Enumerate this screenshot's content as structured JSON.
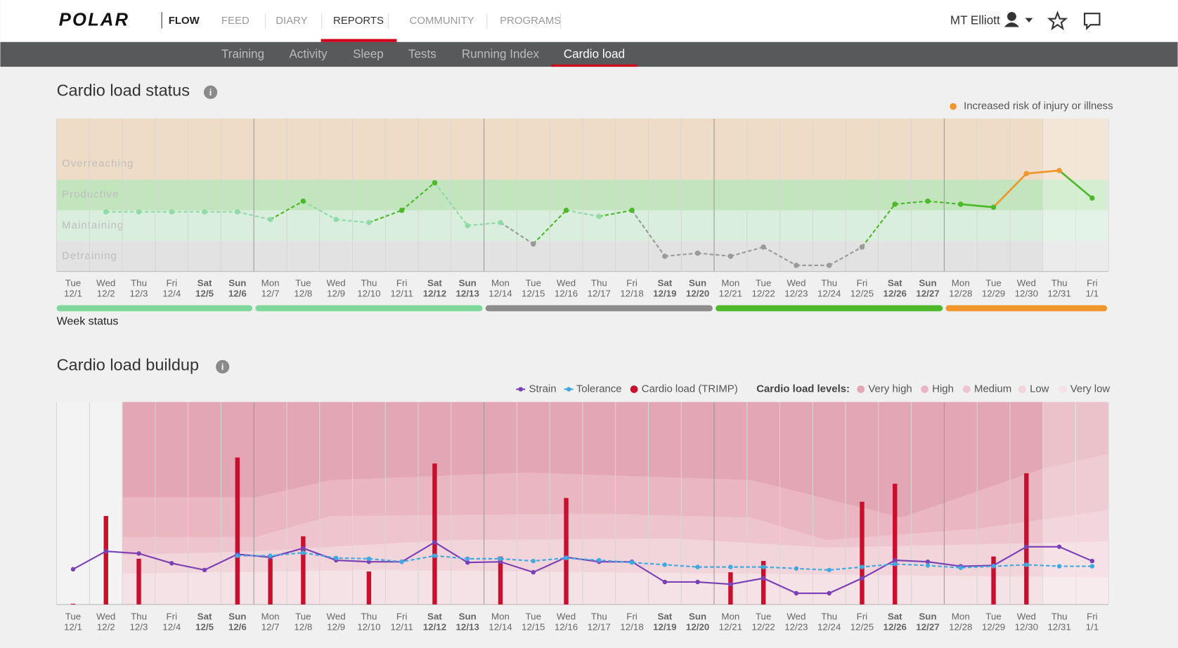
{
  "header": {
    "logo": "POLAR",
    "app": "FLOW",
    "tabs": [
      "FEED",
      "DIARY",
      "REPORTS",
      "COMMUNITY",
      "PROGRAMS"
    ],
    "active_tab": 2,
    "user": "MT Elliott"
  },
  "subnav": {
    "items": [
      "Training",
      "Activity",
      "Sleep",
      "Tests",
      "Running Index",
      "Cardio load"
    ],
    "active": 5
  },
  "days": [
    {
      "weekday": "Tue",
      "date": "12/1"
    },
    {
      "weekday": "Wed",
      "date": "12/2"
    },
    {
      "weekday": "Thu",
      "date": "12/3"
    },
    {
      "weekday": "Fri",
      "date": "12/4"
    },
    {
      "weekday": "Sat",
      "date": "12/5",
      "bold": true
    },
    {
      "weekday": "Sun",
      "date": "12/6",
      "bold": true
    },
    {
      "weekday": "Mon",
      "date": "12/7"
    },
    {
      "weekday": "Tue",
      "date": "12/8"
    },
    {
      "weekday": "Wed",
      "date": "12/9"
    },
    {
      "weekday": "Thu",
      "date": "12/10"
    },
    {
      "weekday": "Fri",
      "date": "12/11"
    },
    {
      "weekday": "Sat",
      "date": "12/12",
      "bold": true
    },
    {
      "weekday": "Sun",
      "date": "12/13",
      "bold": true
    },
    {
      "weekday": "Mon",
      "date": "12/14"
    },
    {
      "weekday": "Tue",
      "date": "12/15"
    },
    {
      "weekday": "Wed",
      "date": "12/16"
    },
    {
      "weekday": "Thu",
      "date": "12/17"
    },
    {
      "weekday": "Fri",
      "date": "12/18"
    },
    {
      "weekday": "Sat",
      "date": "12/19",
      "bold": true
    },
    {
      "weekday": "Sun",
      "date": "12/20",
      "bold": true
    },
    {
      "weekday": "Mon",
      "date": "12/21"
    },
    {
      "weekday": "Tue",
      "date": "12/22"
    },
    {
      "weekday": "Wed",
      "date": "12/23"
    },
    {
      "weekday": "Thu",
      "date": "12/24"
    },
    {
      "weekday": "Fri",
      "date": "12/25"
    },
    {
      "weekday": "Sat",
      "date": "12/26",
      "bold": true
    },
    {
      "weekday": "Sun",
      "date": "12/27",
      "bold": true
    },
    {
      "weekday": "Mon",
      "date": "12/28"
    },
    {
      "weekday": "Tue",
      "date": "12/29"
    },
    {
      "weekday": "Wed",
      "date": "12/30"
    },
    {
      "weekday": "Thu",
      "date": "12/31"
    },
    {
      "weekday": "Fri",
      "date": "1/1"
    }
  ],
  "status_chart": {
    "type": "line",
    "title": "Cardio load status",
    "legend": "Increased risk of injury or illness",
    "ylim": [
      0,
      5
    ],
    "zones": [
      {
        "label": "Overreaching",
        "from": 3,
        "to": 5,
        "fill": "#efdcc6",
        "point_color": "#f0962b"
      },
      {
        "label": "Productive",
        "from": 2,
        "to": 3,
        "fill": "#c3e5bd",
        "point_color": "#4cb82a"
      },
      {
        "label": "Maintaining",
        "from": 1,
        "to": 2,
        "fill": "#d9eedd",
        "point_color": "#8fdaa8"
      },
      {
        "label": "Detraining",
        "from": 0,
        "to": 1,
        "fill": "#e2e2e2",
        "point_color": "#9a9a9a"
      }
    ],
    "values": [
      null,
      1.95,
      1.95,
      1.95,
      1.95,
      1.95,
      1.7,
      2.3,
      1.7,
      1.6,
      2.0,
      2.9,
      1.5,
      1.6,
      0.9,
      2.0,
      1.8,
      2.0,
      0.5,
      0.6,
      0.5,
      0.8,
      0.2,
      0.2,
      0.8,
      2.2,
      2.3,
      2.2,
      2.1,
      3.2,
      3.3,
      2.4
    ],
    "week_status_label": "Week status",
    "week_status": [
      {
        "days": 6,
        "color": "#7dd89a"
      },
      {
        "days": 7,
        "color": "#7dd89a"
      },
      {
        "days": 7,
        "color": "#8c8c8c"
      },
      {
        "days": 7,
        "color": "#4cba2a"
      },
      {
        "days": 5,
        "color": "#f0962b"
      }
    ]
  },
  "buildup_chart": {
    "type": "bar-line",
    "title": "Cardio load buildup",
    "ylim": [
      0,
      270
    ],
    "series": [
      {
        "name": "Strain",
        "color": "#7b3fb5",
        "type": "line",
        "values": [
          47,
          71,
          68,
          55,
          46,
          67,
          63,
          75,
          59,
          57,
          57,
          83,
          56,
          57,
          43,
          63,
          57,
          57,
          30,
          30,
          27,
          35,
          15,
          15,
          35,
          59,
          57,
          51,
          52,
          77,
          77,
          58
        ]
      },
      {
        "name": "Tolerance",
        "color": "#3fa9e0",
        "type": "line",
        "dashed": true,
        "values": [
          null,
          null,
          null,
          null,
          null,
          65,
          65,
          69,
          62,
          61,
          57,
          65,
          61,
          61,
          58,
          62,
          59,
          56,
          53,
          50,
          50,
          50,
          48,
          46,
          50,
          54,
          52,
          49,
          51,
          53,
          51,
          51
        ]
      },
      {
        "name": "Cardio load (TRIMP)",
        "color": "#c8102e",
        "type": "bar",
        "values": [
          1,
          118,
          61,
          0,
          0,
          196,
          61,
          91,
          0,
          44,
          0,
          188,
          0,
          64,
          0,
          142,
          0,
          0,
          0,
          0,
          43,
          58,
          0,
          0,
          137,
          161,
          0,
          0,
          64,
          175,
          0,
          0
        ]
      }
    ],
    "levels_label": "Cardio load levels:",
    "levels": [
      {
        "name": "Very high",
        "color": "#e3a6b4"
      },
      {
        "name": "High",
        "color": "#e9b6c2"
      },
      {
        "name": "Medium",
        "color": "#eec5cf"
      },
      {
        "name": "Low",
        "color": "#f2d4db"
      },
      {
        "name": "Very low",
        "color": "#f5e2e6"
      }
    ]
  }
}
